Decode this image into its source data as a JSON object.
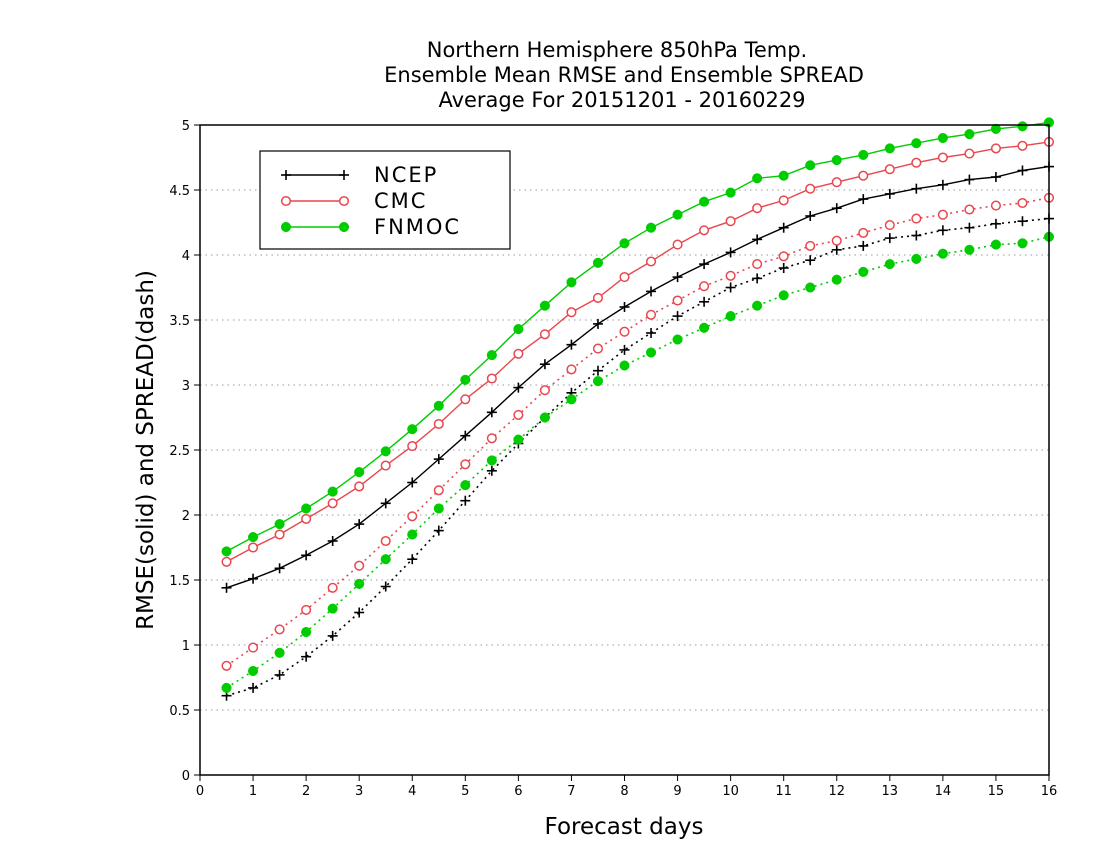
{
  "chart_data": {
    "type": "line",
    "title": [
      "Northern Hemisphere 850hPa Temp.",
      "Ensemble Mean RMSE and Ensemble SPREAD",
      "Average For 20151201 - 20160229"
    ],
    "xlabel": "Forecast days",
    "ylabel": "RMSE(solid) and SPREAD(dash)",
    "xlim": [
      0,
      16
    ],
    "ylim": [
      0,
      5
    ],
    "xticks": [
      "0",
      "1",
      "2",
      "3",
      "4",
      "5",
      "6",
      "7",
      "8",
      "9",
      "10",
      "11",
      "12",
      "13",
      "14",
      "15",
      "16"
    ],
    "yticks": [
      "0",
      "0.5",
      "1",
      "1.5",
      "2",
      "2.5",
      "3",
      "3.5",
      "4",
      "4.5",
      "5"
    ],
    "grid": "horizontal dotted",
    "legend_position": "top-left",
    "x": [
      0.5,
      1,
      1.5,
      2,
      2.5,
      3,
      3.5,
      4,
      4.5,
      5,
      5.5,
      6,
      6.5,
      7,
      7.5,
      8,
      8.5,
      9,
      9.5,
      10,
      10.5,
      11,
      11.5,
      12,
      12.5,
      13,
      13.5,
      14,
      14.5,
      15,
      15.5,
      16
    ],
    "series": [
      {
        "name": "NCEP",
        "metric": "RMSE",
        "style": "solid",
        "marker": "plus",
        "color": "#000000",
        "values": [
          1.44,
          1.51,
          1.59,
          1.69,
          1.8,
          1.93,
          2.09,
          2.25,
          2.43,
          2.61,
          2.79,
          2.98,
          3.16,
          3.31,
          3.47,
          3.6,
          3.72,
          3.83,
          3.93,
          4.02,
          4.12,
          4.21,
          4.3,
          4.36,
          4.43,
          4.47,
          4.51,
          4.54,
          4.58,
          4.6,
          4.65,
          4.68
        ]
      },
      {
        "name": "CMC",
        "metric": "RMSE",
        "style": "solid",
        "marker": "open-circle",
        "color": "#e8474e",
        "values": [
          1.64,
          1.75,
          1.85,
          1.97,
          2.09,
          2.22,
          2.38,
          2.53,
          2.7,
          2.89,
          3.05,
          3.24,
          3.39,
          3.56,
          3.67,
          3.83,
          3.95,
          4.08,
          4.19,
          4.26,
          4.36,
          4.42,
          4.51,
          4.56,
          4.61,
          4.66,
          4.71,
          4.75,
          4.78,
          4.82,
          4.84,
          4.87
        ]
      },
      {
        "name": "FNMOC",
        "metric": "RMSE",
        "style": "solid",
        "marker": "filled-circle",
        "color": "#00cc00",
        "values": [
          1.72,
          1.83,
          1.93,
          2.05,
          2.18,
          2.33,
          2.49,
          2.66,
          2.84,
          3.04,
          3.23,
          3.43,
          3.61,
          3.79,
          3.94,
          4.09,
          4.21,
          4.31,
          4.41,
          4.48,
          4.59,
          4.61,
          4.69,
          4.73,
          4.77,
          4.82,
          4.86,
          4.9,
          4.93,
          4.97,
          4.99,
          5.02
        ]
      },
      {
        "name": "NCEP",
        "metric": "SPREAD",
        "style": "dash",
        "marker": "plus",
        "color": "#000000",
        "values": [
          0.61,
          0.67,
          0.77,
          0.91,
          1.07,
          1.25,
          1.45,
          1.66,
          1.88,
          2.11,
          2.34,
          2.55,
          2.75,
          2.94,
          3.11,
          3.27,
          3.4,
          3.53,
          3.64,
          3.75,
          3.82,
          3.9,
          3.96,
          4.04,
          4.07,
          4.13,
          4.15,
          4.19,
          4.21,
          4.24,
          4.26,
          4.28
        ]
      },
      {
        "name": "CMC",
        "metric": "SPREAD",
        "style": "dash",
        "marker": "open-circle",
        "color": "#e8474e",
        "values": [
          0.84,
          0.98,
          1.12,
          1.27,
          1.44,
          1.61,
          1.8,
          1.99,
          2.19,
          2.39,
          2.59,
          2.77,
          2.96,
          3.12,
          3.28,
          3.41,
          3.54,
          3.65,
          3.76,
          3.84,
          3.93,
          3.99,
          4.07,
          4.11,
          4.17,
          4.23,
          4.28,
          4.31,
          4.35,
          4.38,
          4.4,
          4.44
        ]
      },
      {
        "name": "FNMOC",
        "metric": "SPREAD",
        "style": "dash",
        "marker": "filled-circle",
        "color": "#00cc00",
        "values": [
          0.67,
          0.8,
          0.94,
          1.1,
          1.28,
          1.47,
          1.66,
          1.85,
          2.05,
          2.23,
          2.42,
          2.58,
          2.75,
          2.89,
          3.03,
          3.15,
          3.25,
          3.35,
          3.44,
          3.53,
          3.61,
          3.69,
          3.75,
          3.81,
          3.87,
          3.93,
          3.97,
          4.01,
          4.04,
          4.08,
          4.09,
          4.14
        ]
      }
    ],
    "legend": [
      {
        "label": "NCEP",
        "marker": "plus",
        "color": "#000000"
      },
      {
        "label": "CMC",
        "marker": "open-circle",
        "color": "#e8474e"
      },
      {
        "label": "FNMOC",
        "marker": "filled-circle",
        "color": "#00cc00"
      }
    ]
  }
}
